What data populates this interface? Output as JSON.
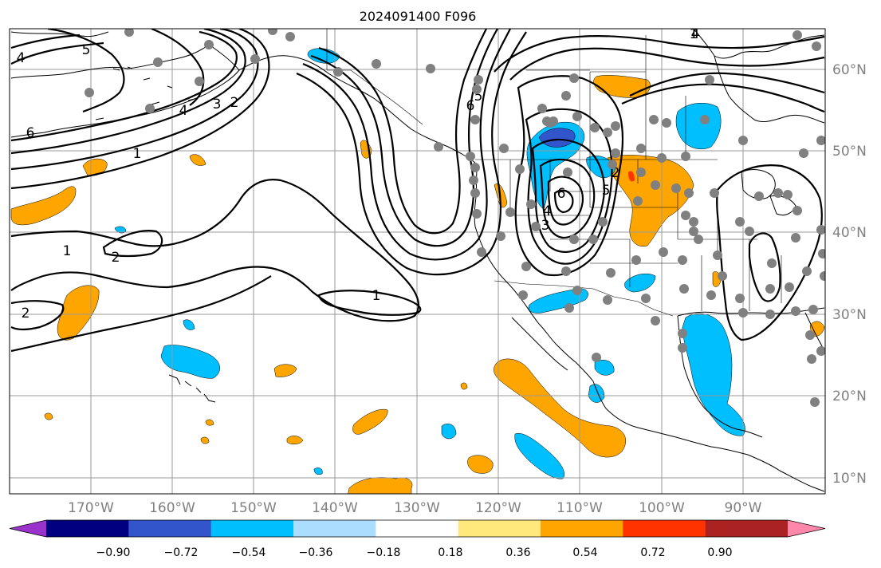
{
  "title": "2024091400 F096",
  "colors": {
    "cmap": [
      "#9933cc",
      "#000080",
      "#3355cc",
      "#00bfff",
      "#aaddff",
      "#ffffff",
      "#ffe87c",
      "#ffa500",
      "#ff3300",
      "#aa2222",
      "#ff88aa"
    ],
    "positive_fill": "#ffa500",
    "negative_fill": "#00bfff",
    "strong_negative_fill": "#3355cc",
    "strong_positive_fill": "#ff3300",
    "contour": "#000000",
    "station": "#808080",
    "grid": "#9a9a9a",
    "axis_label": "#808080"
  },
  "lat_labels": [
    "60°N",
    "50°N",
    "40°N",
    "30°N",
    "20°N",
    "10°N"
  ],
  "lon_labels": [
    "170°W",
    "160°W",
    "150°W",
    "140°W",
    "130°W",
    "120°W",
    "110°W",
    "100°W",
    "90°W"
  ],
  "colorbar": {
    "tick_labels": [
      "−0.90",
      "−0.72",
      "−0.54",
      "−0.36",
      "−0.18",
      "0.18",
      "0.36",
      "0.54",
      "0.72",
      "0.90"
    ],
    "extend": "both"
  },
  "contour_labels": [
    "5",
    "4",
    "6",
    "4",
    "3",
    "2",
    "1",
    "1",
    "2",
    "1",
    "2",
    "1",
    "6",
    "5",
    "6",
    "5",
    "4",
    "3",
    "2",
    "4"
  ],
  "station_count": 110
}
